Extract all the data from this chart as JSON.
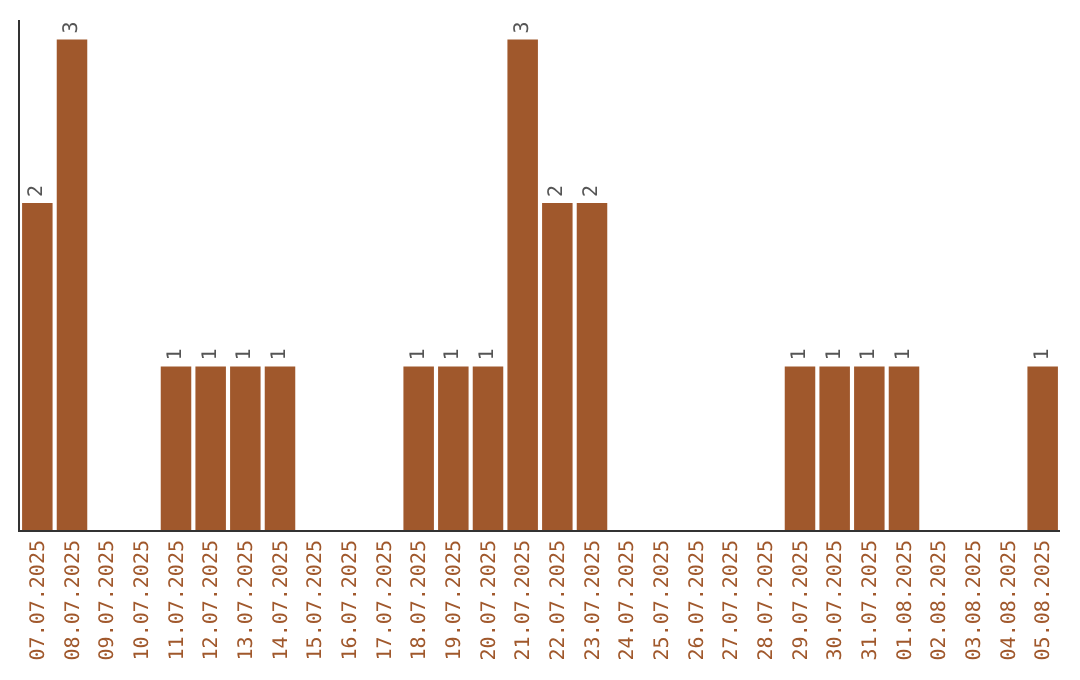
{
  "chart_data": {
    "type": "bar",
    "categories": [
      "07.07.2025",
      "08.07.2025",
      "09.07.2025",
      "10.07.2025",
      "11.07.2025",
      "12.07.2025",
      "13.07.2025",
      "14.07.2025",
      "15.07.2025",
      "16.07.2025",
      "17.07.2025",
      "18.07.2025",
      "19.07.2025",
      "20.07.2025",
      "21.07.2025",
      "22.07.2025",
      "23.07.2025",
      "24.07.2025",
      "25.07.2025",
      "26.07.2025",
      "27.07.2025",
      "28.07.2025",
      "29.07.2025",
      "30.07.2025",
      "31.07.2025",
      "01.08.2025",
      "02.08.2025",
      "03.08.2025",
      "04.08.2025",
      "05.08.2025"
    ],
    "values": [
      2,
      3,
      0,
      0,
      1,
      1,
      1,
      1,
      0,
      0,
      0,
      1,
      1,
      1,
      3,
      2,
      2,
      0,
      0,
      0,
      0,
      0,
      1,
      1,
      1,
      1,
      0,
      0,
      0,
      1
    ],
    "value_labels": [
      "2",
      "3",
      null,
      null,
      "1",
      "1",
      "1",
      "1",
      null,
      null,
      null,
      "1",
      "1",
      "1",
      "3",
      "2",
      "2",
      null,
      null,
      null,
      null,
      null,
      "1",
      "1",
      "1",
      "1",
      null,
      null,
      null,
      "1"
    ],
    "color": "#a0582c"
  }
}
